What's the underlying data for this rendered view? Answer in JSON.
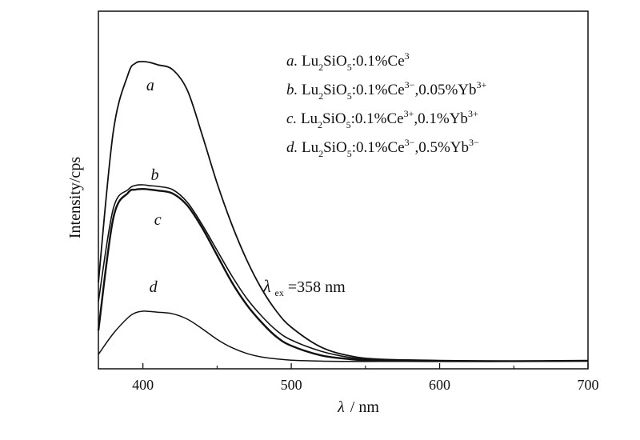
{
  "chart_data": {
    "type": "line",
    "xlabel_symbol": "λ",
    "xlabel_unit": "/ nm",
    "ylabel": "Intensity/cps",
    "xlim": [
      370,
      700
    ],
    "ylim": [
      0,
      1.0
    ],
    "x_ticks": [
      "400",
      "500",
      "600",
      "700"
    ],
    "grid": false,
    "legend": {
      "placement": "top-right",
      "entries": [
        {
          "letter": "a.",
          "prefix": "Lu",
          "sub1": "2",
          "mid": "SiO",
          "sub2": "5",
          "rest": ":0.1%Ce",
          "sup1": "3",
          "rest2": "",
          "sup2": ""
        },
        {
          "letter": "b.",
          "prefix": "Lu",
          "sub1": "2",
          "mid": "SiO",
          "sub2": "5",
          "rest": ":0.1%Ce",
          "sup1": "3−",
          "rest2": ",0.05%Yb",
          "sup2": "3+"
        },
        {
          "letter": "c.",
          "prefix": "Lu",
          "sub1": "2",
          "mid": "SiO",
          "sub2": "5",
          "rest": ":0.1%Ce",
          "sup1": "3+",
          "rest2": ",0.1%Yb",
          "sup2": "3+"
        },
        {
          "letter": "d.",
          "prefix": "Lu",
          "sub1": "2",
          "mid": "SiO",
          "sub2": "5",
          "rest": ":0.1%Ce",
          "sup1": "3−",
          "rest2": ",0.5%Yb",
          "sup2": "3−"
        }
      ]
    },
    "annotation": {
      "symbol": "λ",
      "sub": "ex",
      "text": "=358 nm"
    },
    "series": [
      {
        "label": "a",
        "x": [
          370,
          380,
          390,
          395,
          400,
          405,
          410,
          420,
          430,
          440,
          450,
          460,
          470,
          480,
          490,
          500,
          520,
          540,
          560,
          600,
          650,
          700
        ],
        "y": [
          0.27,
          0.74,
          0.92,
          0.955,
          0.96,
          0.957,
          0.95,
          0.935,
          0.87,
          0.73,
          0.58,
          0.45,
          0.34,
          0.25,
          0.18,
          0.13,
          0.068,
          0.04,
          0.03,
          0.026,
          0.024,
          0.025
        ]
      },
      {
        "label": "b",
        "x": [
          370,
          380,
          390,
          395,
          400,
          405,
          410,
          420,
          430,
          440,
          450,
          460,
          470,
          480,
          490,
          500,
          520,
          540,
          560,
          600,
          650,
          700
        ],
        "y": [
          0.21,
          0.5,
          0.56,
          0.573,
          0.575,
          0.572,
          0.57,
          0.56,
          0.52,
          0.45,
          0.37,
          0.29,
          0.22,
          0.165,
          0.12,
          0.09,
          0.055,
          0.035,
          0.027,
          0.024,
          0.024,
          0.025
        ]
      },
      {
        "label": "c",
        "x": [
          370,
          380,
          390,
          395,
          400,
          405,
          410,
          420,
          430,
          440,
          450,
          460,
          470,
          480,
          490,
          500,
          520,
          540,
          560,
          600,
          650,
          700
        ],
        "y": [
          0.12,
          0.47,
          0.55,
          0.56,
          0.562,
          0.56,
          0.557,
          0.548,
          0.51,
          0.44,
          0.355,
          0.27,
          0.2,
          0.145,
          0.1,
          0.072,
          0.042,
          0.03,
          0.025,
          0.024,
          0.024,
          0.025
        ]
      },
      {
        "label": "d",
        "x": [
          370,
          380,
          390,
          395,
          400,
          405,
          410,
          420,
          430,
          440,
          450,
          460,
          470,
          480,
          490,
          500,
          520,
          540,
          560,
          600,
          650,
          700
        ],
        "y": [
          0.045,
          0.11,
          0.16,
          0.175,
          0.18,
          0.179,
          0.177,
          0.172,
          0.155,
          0.125,
          0.092,
          0.066,
          0.048,
          0.037,
          0.031,
          0.027,
          0.024,
          0.023,
          0.023,
          0.023,
          0.023,
          0.024
        ]
      }
    ],
    "curve_label_positions": [
      {
        "label": "a",
        "x": 405,
        "y": 0.87
      },
      {
        "label": "b",
        "x": 408,
        "y": 0.59
      },
      {
        "label": "c",
        "x": 410,
        "y": 0.45
      },
      {
        "label": "d",
        "x": 407,
        "y": 0.24
      }
    ],
    "annotation_position": {
      "x": 480,
      "y": 0.24
    }
  }
}
